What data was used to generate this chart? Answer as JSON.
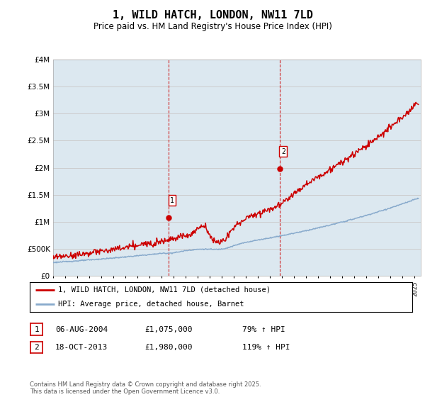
{
  "title": "1, WILD HATCH, LONDON, NW11 7LD",
  "subtitle": "Price paid vs. HM Land Registry's House Price Index (HPI)",
  "ytick_values": [
    0,
    500000,
    1000000,
    1500000,
    2000000,
    2500000,
    3000000,
    3500000,
    4000000
  ],
  "ylim": [
    0,
    4000000
  ],
  "xlim_start": 1995.0,
  "xlim_end": 2025.5,
  "red_color": "#cc0000",
  "blue_color": "#88aacc",
  "vline_color": "#cc0000",
  "grid_color": "#cccccc",
  "bg_color": "#dce8f0",
  "transaction1_x": 2004.58,
  "transaction1_y": 1075000,
  "transaction2_x": 2013.79,
  "transaction2_y": 1980000,
  "legend_label_red": "1, WILD HATCH, LONDON, NW11 7LD (detached house)",
  "legend_label_blue": "HPI: Average price, detached house, Barnet",
  "table_row1": [
    "1",
    "06-AUG-2004",
    "£1,075,000",
    "79% ↑ HPI"
  ],
  "table_row2": [
    "2",
    "18-OCT-2013",
    "£1,980,000",
    "119% ↑ HPI"
  ],
  "footer": "Contains HM Land Registry data © Crown copyright and database right 2025.\nThis data is licensed under the Open Government Licence v3.0."
}
